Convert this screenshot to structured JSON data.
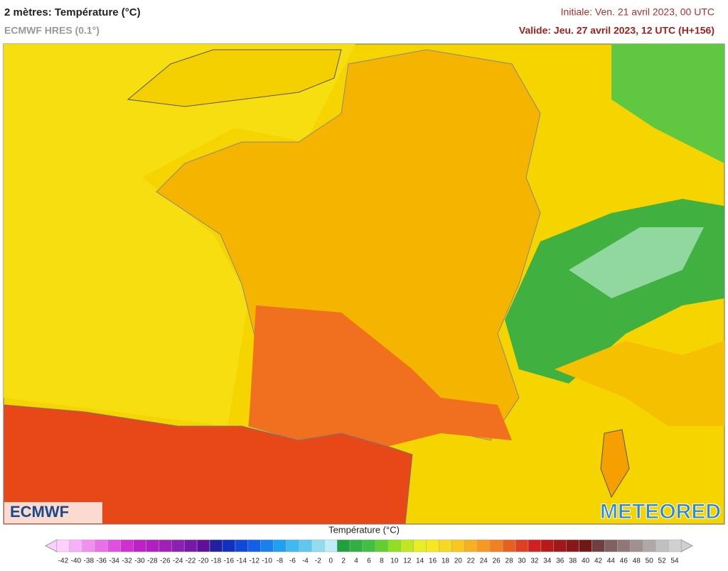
{
  "header": {
    "title": "2 mètres: Température (°C)",
    "subtitle": "ECMWF HRES (0.1°)",
    "initial": "Initiale: Ven. 21 avril 2023, 00 UTC",
    "valid": "Valide: Jeu. 27 avril 2023, 12 UTC (H+156)"
  },
  "logos": {
    "left": "ECMWF",
    "right": "METEORED"
  },
  "colorbar": {
    "title": "Température (°C)",
    "ticks": [
      -42,
      -40,
      -38,
      -36,
      -34,
      -32,
      -30,
      -28,
      -26,
      -24,
      -22,
      -20,
      -18,
      -16,
      -14,
      -12,
      -10,
      -8,
      -6,
      -4,
      -2,
      0,
      2,
      4,
      6,
      8,
      10,
      12,
      14,
      16,
      18,
      20,
      22,
      24,
      26,
      28,
      30,
      32,
      34,
      36,
      38,
      40,
      42,
      44,
      46,
      48,
      50,
      52,
      54
    ],
    "colors": [
      "#ffd0ff",
      "#f8b0f8",
      "#f090f0",
      "#e870e8",
      "#e050e0",
      "#d030d0",
      "#c020c8",
      "#b020c0",
      "#a020b8",
      "#8c20b0",
      "#7818a8",
      "#601098",
      "#2020a0",
      "#1030c0",
      "#1048d8",
      "#1060e8",
      "#1880f0",
      "#20a0f0",
      "#40b8f0",
      "#60c8f0",
      "#90dcf0",
      "#c0eef8",
      "#20a040",
      "#30b040",
      "#40c040",
      "#60d030",
      "#90e020",
      "#c0e820",
      "#e8ee20",
      "#f8e820",
      "#f8d820",
      "#f8c820",
      "#f8b020",
      "#f89820",
      "#f08020",
      "#e86020",
      "#e04020",
      "#d02020",
      "#b81818",
      "#a01818",
      "#881818",
      "#701818",
      "#704040",
      "#806060",
      "#907878",
      "#a09090",
      "#b0a8a8",
      "#c0c0c0",
      "#d0d0d0"
    ]
  }
}
